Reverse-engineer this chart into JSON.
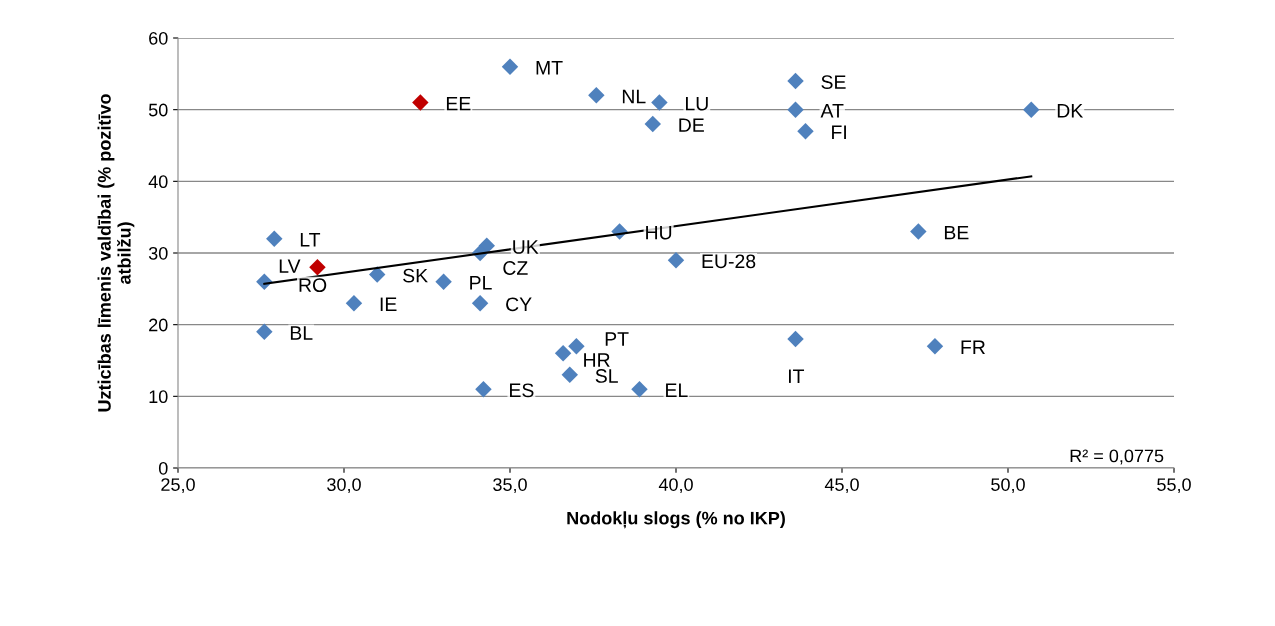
{
  "chart_data": {
    "type": "scatter",
    "xlabel": "Nodokļu slogs (% no IKP)",
    "ylabel": "Uzticības līmenis valdībai (% pozitīvo\natbilžu)",
    "xlim": [
      25,
      55
    ],
    "ylim": [
      0,
      60
    ],
    "xticks": [
      {
        "value": 25,
        "label": "25,0"
      },
      {
        "value": 30,
        "label": "30,0"
      },
      {
        "value": 35,
        "label": "35,0"
      },
      {
        "value": 40,
        "label": "40,0"
      },
      {
        "value": 45,
        "label": "45,0"
      },
      {
        "value": 50,
        "label": "50,0"
      },
      {
        "value": 55,
        "label": "55,0"
      }
    ],
    "yticks": [
      0,
      10,
      20,
      30,
      40,
      50,
      60
    ],
    "grid": "y",
    "marker": "diamond",
    "series": [
      {
        "color": "#4f81bd",
        "x": [
          35.0,
          37.6,
          39.5,
          39.3,
          43.6,
          43.6,
          43.9,
          50.7,
          27.9,
          38.3,
          47.3,
          34.3,
          34.1,
          40.0,
          27.6,
          31.0,
          33.0,
          30.3,
          34.1,
          27.6,
          37.0,
          36.6,
          36.8,
          34.2,
          38.9,
          43.6,
          47.8
        ],
        "values": [
          56,
          52,
          51,
          48,
          54,
          50,
          47,
          50,
          32,
          33,
          33,
          31,
          30,
          29,
          26,
          27,
          26,
          23,
          23,
          19,
          17,
          16,
          13,
          11,
          11,
          18,
          17
        ]
      },
      {
        "color": "#c00000",
        "x": [
          32.3,
          29.2
        ],
        "values": [
          51,
          28
        ]
      },
      {
        "type": "line",
        "marker": "none",
        "color": "#000000",
        "x": [
          27.6,
          50.7
        ],
        "values": [
          25.7,
          40.7
        ]
      }
    ],
    "annotations": [
      {
        "text": "MT",
        "x": 35.0,
        "y": 56
      },
      {
        "text": "NL",
        "x": 37.6,
        "y": 52
      },
      {
        "text": "LU",
        "x": 39.5,
        "y": 51
      },
      {
        "text": "DE",
        "x": 39.3,
        "y": 48
      },
      {
        "text": "SE",
        "x": 43.6,
        "y": 54
      },
      {
        "text": "AT",
        "x": 43.6,
        "y": 50
      },
      {
        "text": "FI",
        "x": 43.9,
        "y": 47
      },
      {
        "text": "DK",
        "x": 50.7,
        "y": 50
      },
      {
        "text": "LT",
        "x": 27.9,
        "y": 32
      },
      {
        "text": "HU",
        "x": 38.3,
        "y": 33
      },
      {
        "text": "BE",
        "x": 47.3,
        "y": 33
      },
      {
        "text": "UK",
        "x": 34.3,
        "y": 31
      },
      {
        "text": "CZ",
        "x": 34.1,
        "y": 30
      },
      {
        "text": "EU-28",
        "x": 40.0,
        "y": 29
      },
      {
        "text": "LV",
        "x": 27.6,
        "y": 26
      },
      {
        "text": "SK",
        "x": 31.0,
        "y": 27
      },
      {
        "text": "PL",
        "x": 33.0,
        "y": 26
      },
      {
        "text": "IE",
        "x": 30.3,
        "y": 23
      },
      {
        "text": "CY",
        "x": 34.1,
        "y": 23
      },
      {
        "text": "BL",
        "x": 27.6,
        "y": 19
      },
      {
        "text": "PT",
        "x": 37.0,
        "y": 17
      },
      {
        "text": "HR",
        "x": 36.6,
        "y": 16
      },
      {
        "text": "SL",
        "x": 36.8,
        "y": 13
      },
      {
        "text": "ES",
        "x": 34.2,
        "y": 11
      },
      {
        "text": "EL",
        "x": 38.9,
        "y": 11
      },
      {
        "text": "IT",
        "x": 43.6,
        "y": 18
      },
      {
        "text": "FR",
        "x": 47.8,
        "y": 17
      },
      {
        "text": "EE",
        "x": 32.3,
        "y": 51
      },
      {
        "text": "RO",
        "x": 29.2,
        "y": 28
      },
      "R² = 0,0775"
    ]
  }
}
